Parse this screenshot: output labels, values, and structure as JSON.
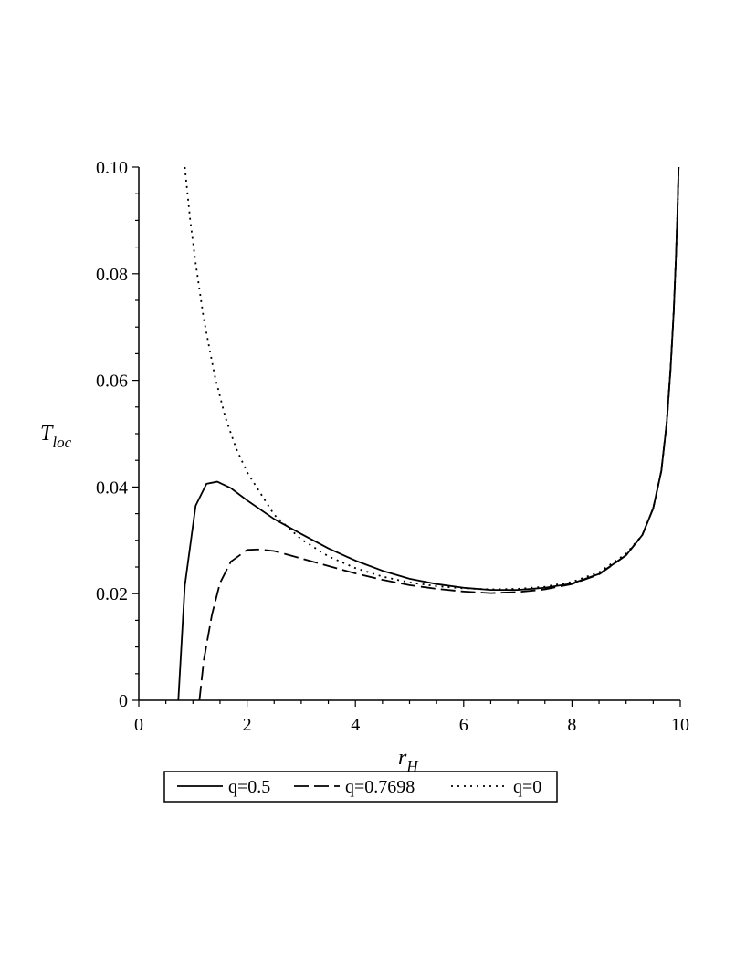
{
  "chart_data": {
    "type": "line",
    "title": "",
    "xlabel": {
      "main": "r",
      "sub": "H"
    },
    "ylabel": {
      "main": "T",
      "sub": "loc"
    },
    "xlim": [
      0,
      10
    ],
    "ylim": [
      0,
      0.1
    ],
    "x_ticks": [
      "0",
      "2",
      "4",
      "6",
      "8",
      "10"
    ],
    "y_ticks": [
      "0",
      "0.02",
      "0.04",
      "0.06",
      "0.08",
      "0.10"
    ],
    "grid": false,
    "legend_position": "bottom",
    "series": [
      {
        "name": "q=0.5",
        "style": "solid",
        "color": "#000000",
        "points": [
          [
            0.73,
            0.0
          ],
          [
            0.85,
            0.0215
          ],
          [
            1.05,
            0.0365
          ],
          [
            1.25,
            0.0406
          ],
          [
            1.45,
            0.041
          ],
          [
            1.7,
            0.0398
          ],
          [
            2.0,
            0.0375
          ],
          [
            2.5,
            0.034
          ],
          [
            3.0,
            0.0312
          ],
          [
            3.5,
            0.0285
          ],
          [
            4.0,
            0.0262
          ],
          [
            4.5,
            0.0243
          ],
          [
            5.0,
            0.0228
          ],
          [
            5.5,
            0.0218
          ],
          [
            6.0,
            0.0211
          ],
          [
            6.5,
            0.0207
          ],
          [
            7.0,
            0.0207
          ],
          [
            7.5,
            0.0211
          ],
          [
            8.0,
            0.0219
          ],
          [
            8.5,
            0.0237
          ],
          [
            9.0,
            0.0272
          ],
          [
            9.3,
            0.031
          ],
          [
            9.5,
            0.036
          ],
          [
            9.65,
            0.043
          ],
          [
            9.75,
            0.052
          ],
          [
            9.82,
            0.062
          ],
          [
            9.88,
            0.073
          ],
          [
            9.92,
            0.083
          ],
          [
            9.95,
            0.092
          ],
          [
            9.97,
            0.1
          ]
        ]
      },
      {
        "name": "q=0.7698",
        "style": "dashed",
        "color": "#000000",
        "points": [
          [
            1.12,
            0.0
          ],
          [
            1.2,
            0.0075
          ],
          [
            1.35,
            0.016
          ],
          [
            1.5,
            0.022
          ],
          [
            1.7,
            0.026
          ],
          [
            2.0,
            0.0282
          ],
          [
            2.2,
            0.0283
          ],
          [
            2.5,
            0.028
          ],
          [
            3.0,
            0.0266
          ],
          [
            3.5,
            0.0252
          ],
          [
            4.0,
            0.0238
          ],
          [
            4.5,
            0.0226
          ],
          [
            5.0,
            0.0216
          ],
          [
            5.5,
            0.0209
          ],
          [
            6.0,
            0.0204
          ],
          [
            6.5,
            0.0201
          ],
          [
            7.0,
            0.0203
          ],
          [
            7.5,
            0.0208
          ],
          [
            8.0,
            0.0218
          ],
          [
            8.5,
            0.0236
          ],
          [
            9.0,
            0.0272
          ],
          [
            9.3,
            0.031
          ],
          [
            9.5,
            0.036
          ],
          [
            9.65,
            0.043
          ],
          [
            9.75,
            0.052
          ],
          [
            9.82,
            0.062
          ],
          [
            9.88,
            0.073
          ],
          [
            9.92,
            0.083
          ],
          [
            9.95,
            0.092
          ],
          [
            9.97,
            0.1
          ]
        ]
      },
      {
        "name": "q=0",
        "style": "dotted",
        "color": "#000000",
        "points": [
          [
            0.85,
            0.1
          ],
          [
            0.95,
            0.09
          ],
          [
            1.05,
            0.082
          ],
          [
            1.2,
            0.0715
          ],
          [
            1.4,
            0.061
          ],
          [
            1.6,
            0.053
          ],
          [
            1.8,
            0.0472
          ],
          [
            2.0,
            0.0428
          ],
          [
            2.5,
            0.0348
          ],
          [
            3.0,
            0.0302
          ],
          [
            3.5,
            0.027
          ],
          [
            4.0,
            0.0248
          ],
          [
            4.5,
            0.0232
          ],
          [
            5.0,
            0.0221
          ],
          [
            5.5,
            0.0214
          ],
          [
            6.0,
            0.021
          ],
          [
            6.5,
            0.0208
          ],
          [
            7.0,
            0.0209
          ],
          [
            7.5,
            0.0213
          ],
          [
            8.0,
            0.0222
          ],
          [
            8.5,
            0.024
          ],
          [
            9.0,
            0.0275
          ],
          [
            9.3,
            0.031
          ],
          [
            9.5,
            0.036
          ],
          [
            9.65,
            0.043
          ],
          [
            9.75,
            0.052
          ],
          [
            9.82,
            0.062
          ],
          [
            9.88,
            0.073
          ],
          [
            9.92,
            0.083
          ],
          [
            9.95,
            0.092
          ],
          [
            9.97,
            0.1
          ]
        ]
      }
    ]
  }
}
